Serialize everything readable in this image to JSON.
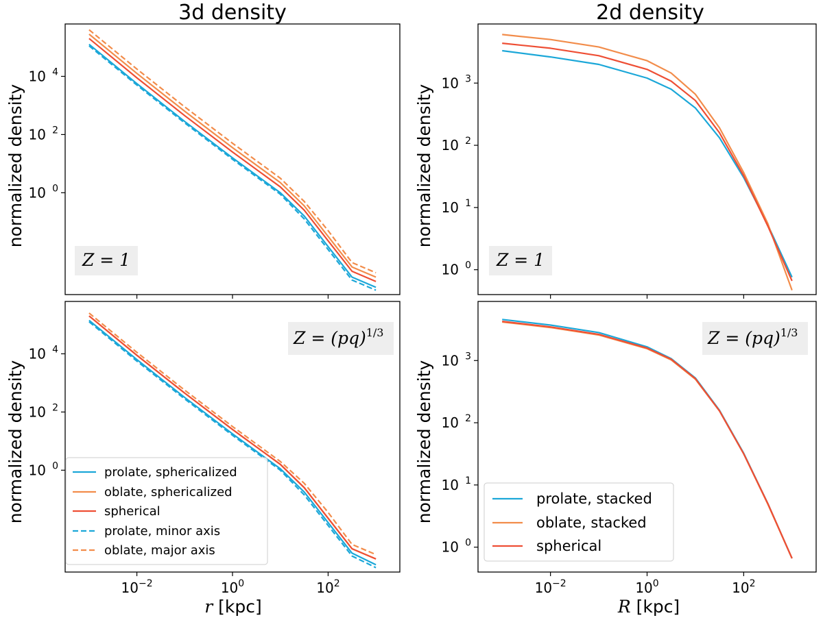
{
  "titles": {
    "left": "3d density",
    "right": "2d density"
  },
  "ylabel": "normalized density",
  "xlabels": {
    "r": "r",
    "R": "R",
    "unit": " [kpc]"
  },
  "annotations": {
    "z1": "Z = 1",
    "zpq": "Z = (pq)",
    "zpq_exp": "1/3"
  },
  "colors": {
    "prolate": "#1ba7d8",
    "oblate": "#f28c4a",
    "spherical": "#ee4e34"
  },
  "legend_3d": [
    {
      "label": "prolate, sphericalized",
      "color": "#1ba7d8",
      "dash": false
    },
    {
      "label": "oblate, sphericalized",
      "color": "#f28c4a",
      "dash": false
    },
    {
      "label": "spherical",
      "color": "#ee4e34",
      "dash": false
    },
    {
      "label": "prolate, minor axis",
      "color": "#1ba7d8",
      "dash": true
    },
    {
      "label": "oblate, major axis",
      "color": "#f28c4a",
      "dash": true
    }
  ],
  "legend_2d": [
    {
      "label": "prolate, stacked",
      "color": "#1ba7d8"
    },
    {
      "label": "oblate, stacked",
      "color": "#f28c4a"
    },
    {
      "label": "spherical",
      "color": "#ee4e34"
    }
  ],
  "xticks": [
    {
      "base": "10",
      "exp": "−2",
      "value": -2
    },
    {
      "base": "10",
      "exp": "0",
      "value": 0
    },
    {
      "base": "10",
      "exp": "2",
      "value": 2
    }
  ],
  "yticks_3d": [
    {
      "base": "10",
      "exp": "4",
      "value": 4
    },
    {
      "base": "10",
      "exp": "2",
      "value": 2
    },
    {
      "base": "10",
      "exp": "0",
      "value": 0
    }
  ],
  "yticks_2d": [
    {
      "base": "10",
      "exp": "3",
      "value": 3
    },
    {
      "base": "10",
      "exp": "2",
      "value": 2
    },
    {
      "base": "10",
      "exp": "1",
      "value": 1
    },
    {
      "base": "10",
      "exp": "0",
      "value": 0
    }
  ],
  "chart_data": [
    {
      "type": "line",
      "panel": "top-left",
      "title": "3d density",
      "xlabel": "r [kpc]",
      "ylabel": "normalized density",
      "xscale": "log",
      "yscale": "log",
      "xlim_log10": [
        -3.5,
        3.5
      ],
      "ylim_log10": [
        -3.5,
        5.8
      ],
      "annotation": "Z = 1",
      "x_log10": [
        -3,
        -2,
        -1,
        0,
        1,
        1.5,
        2,
        2.5,
        3
      ],
      "series": [
        {
          "name": "prolate, sphericalized",
          "color": "#1ba7d8",
          "dash": false,
          "y_log10": [
            5.1,
            3.75,
            2.45,
            1.2,
            0.0,
            -0.8,
            -1.85,
            -2.9,
            -3.25
          ]
        },
        {
          "name": "oblate, sphericalized",
          "color": "#f28c4a",
          "dash": false,
          "y_log10": [
            5.45,
            4.1,
            2.8,
            1.55,
            0.35,
            -0.45,
            -1.5,
            -2.55,
            -2.9
          ]
        },
        {
          "name": "spherical",
          "color": "#ee4e34",
          "dash": false,
          "y_log10": [
            5.3,
            3.95,
            2.65,
            1.4,
            0.2,
            -0.6,
            -1.65,
            -2.7,
            -3.05
          ]
        },
        {
          "name": "prolate, minor axis",
          "color": "#1ba7d8",
          "dash": true,
          "y_log10": [
            5.05,
            3.7,
            2.4,
            1.15,
            -0.05,
            -0.9,
            -1.95,
            -3.0,
            -3.35
          ]
        },
        {
          "name": "oblate, major axis",
          "color": "#f28c4a",
          "dash": true,
          "y_log10": [
            5.6,
            4.25,
            2.95,
            1.7,
            0.5,
            -0.3,
            -1.3,
            -2.4,
            -2.75
          ]
        }
      ]
    },
    {
      "type": "line",
      "panel": "top-right",
      "title": "2d density",
      "xlabel": "R [kpc]",
      "ylabel": "normalized density",
      "xscale": "log",
      "yscale": "log",
      "xlim_log10": [
        -3.5,
        3.5
      ],
      "ylim_log10": [
        -0.4,
        3.95
      ],
      "annotation": "Z = 1",
      "x_log10": [
        -3,
        -2,
        -1,
        0,
        0.5,
        1,
        1.5,
        2,
        2.5,
        3
      ],
      "series": [
        {
          "name": "prolate, stacked",
          "color": "#1ba7d8",
          "y_log10": [
            3.52,
            3.42,
            3.3,
            3.08,
            2.9,
            2.6,
            2.12,
            1.48,
            0.72,
            -0.12
          ]
        },
        {
          "name": "oblate, stacked",
          "color": "#f28c4a",
          "y_log10": [
            3.78,
            3.7,
            3.58,
            3.36,
            3.16,
            2.82,
            2.28,
            1.56,
            0.74,
            -0.33
          ]
        },
        {
          "name": "spherical",
          "color": "#ee4e34",
          "y_log10": [
            3.64,
            3.56,
            3.44,
            3.22,
            3.03,
            2.72,
            2.2,
            1.51,
            0.7,
            -0.18
          ]
        }
      ]
    },
    {
      "type": "line",
      "panel": "bottom-left",
      "title": "",
      "xlabel": "r [kpc]",
      "ylabel": "normalized density",
      "xscale": "log",
      "yscale": "log",
      "xlim_log10": [
        -3.5,
        3.5
      ],
      "ylim_log10": [
        -3.5,
        5.8
      ],
      "annotation": "Z = (pq)^1/3",
      "x_log10": [
        -3,
        -2,
        -1,
        0,
        1,
        1.5,
        2,
        2.5,
        3
      ],
      "series": [
        {
          "name": "prolate, sphericalized",
          "color": "#1ba7d8",
          "dash": false,
          "y_log10": [
            5.15,
            3.8,
            2.5,
            1.25,
            0.05,
            -0.75,
            -1.8,
            -2.85,
            -3.25
          ]
        },
        {
          "name": "oblate, sphericalized",
          "color": "#f28c4a",
          "dash": false,
          "y_log10": [
            5.3,
            3.95,
            2.65,
            1.4,
            0.2,
            -0.6,
            -1.65,
            -2.7,
            -3.05
          ]
        },
        {
          "name": "spherical",
          "color": "#ee4e34",
          "dash": false,
          "y_log10": [
            5.3,
            3.95,
            2.65,
            1.4,
            0.2,
            -0.6,
            -1.65,
            -2.7,
            -3.05
          ]
        },
        {
          "name": "prolate, minor axis",
          "color": "#1ba7d8",
          "dash": true,
          "y_log10": [
            5.1,
            3.75,
            2.45,
            1.2,
            0.0,
            -0.85,
            -1.9,
            -2.95,
            -3.35
          ]
        },
        {
          "name": "oblate, major axis",
          "color": "#f28c4a",
          "dash": true,
          "y_log10": [
            5.4,
            4.05,
            2.75,
            1.5,
            0.3,
            -0.45,
            -1.45,
            -2.55,
            -2.9
          ]
        }
      ]
    },
    {
      "type": "line",
      "panel": "bottom-right",
      "title": "",
      "xlabel": "R [kpc]",
      "ylabel": "normalized density",
      "xscale": "log",
      "yscale": "log",
      "xlim_log10": [
        -3.5,
        3.5
      ],
      "ylim_log10": [
        -0.4,
        3.95
      ],
      "annotation": "Z = (pq)^1/3",
      "x_log10": [
        -3,
        -2,
        -1,
        0,
        0.5,
        1,
        1.5,
        2,
        2.5,
        3
      ],
      "series": [
        {
          "name": "prolate, stacked",
          "color": "#1ba7d8",
          "y_log10": [
            3.66,
            3.57,
            3.45,
            3.22,
            3.03,
            2.72,
            2.2,
            1.51,
            0.7,
            -0.18
          ]
        },
        {
          "name": "oblate, stacked",
          "color": "#f28c4a",
          "y_log10": [
            3.62,
            3.53,
            3.41,
            3.19,
            3.01,
            2.7,
            2.19,
            1.5,
            0.69,
            -0.18
          ]
        },
        {
          "name": "spherical",
          "color": "#ee4e34",
          "y_log10": [
            3.63,
            3.54,
            3.42,
            3.2,
            3.02,
            2.71,
            2.19,
            1.5,
            0.7,
            -0.18
          ]
        }
      ]
    }
  ]
}
